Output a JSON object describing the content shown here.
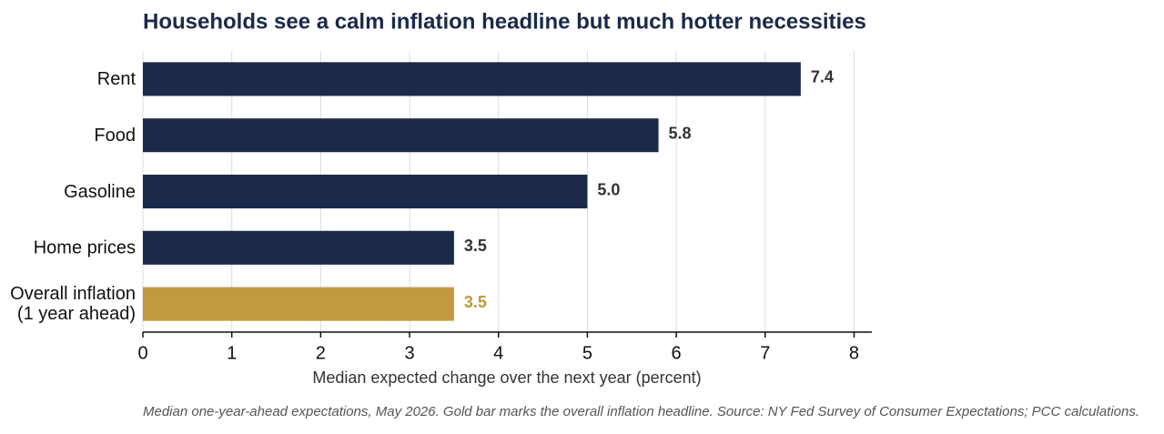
{
  "chart_data": {
    "type": "barh",
    "title": "Households see a calm inflation headline but much hotter necessities",
    "categories": [
      "Rent",
      "Food",
      "Gasoline",
      "Home prices",
      "Overall inflation\n(1 year ahead)"
    ],
    "values": [
      7.4,
      5.8,
      5.0,
      3.5,
      3.5
    ],
    "value_labels": [
      "7.4",
      "5.8",
      "5.0",
      "3.5",
      "3.5"
    ],
    "colors": [
      "#1b2a4a",
      "#1b2a4a",
      "#1b2a4a",
      "#1b2a4a",
      "#c09a3e"
    ],
    "xlim": [
      0,
      8.2
    ],
    "xticks": [
      0,
      1,
      2,
      3,
      4,
      5,
      6,
      7,
      8
    ],
    "grid": true,
    "xlabel": "Median expected change over the next year (percent)",
    "caption": "Median one-year-ahead expectations, May 2026. Gold bar marks the overall inflation headline. Source: NY Fed Survey of Consumer Expectations; PCC calculations."
  }
}
